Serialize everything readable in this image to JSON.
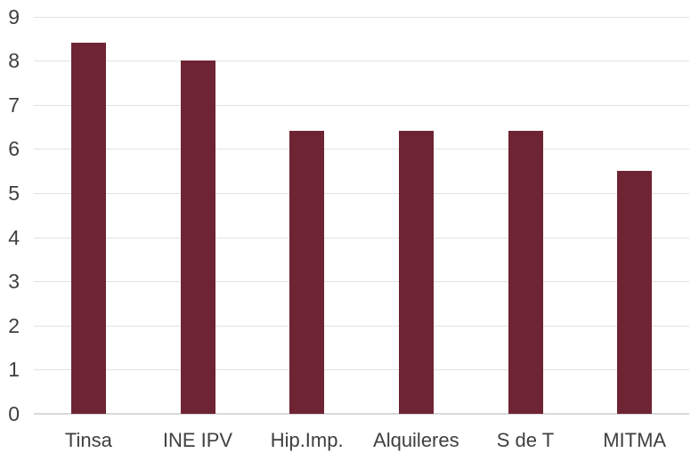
{
  "chart_data": {
    "type": "bar",
    "title": "",
    "xlabel": "",
    "ylabel": "",
    "categories": [
      "Tinsa",
      "INE IPV",
      "Hip.Imp.",
      "Alquileres",
      "S de T",
      "MITMA"
    ],
    "values": [
      8.4,
      8.0,
      6.4,
      6.4,
      6.4,
      5.5
    ],
    "ylim": [
      0,
      9
    ],
    "ytick_step": 1,
    "ytick_labels": [
      "0",
      "1",
      "2",
      "3",
      "4",
      "5",
      "6",
      "7",
      "8",
      "9"
    ],
    "grid": true,
    "legend": false,
    "colors": {
      "bar": "#6E2433",
      "gridline": "#E2E2E2",
      "axis_line": "#D9D9D9",
      "label_text": "#3F3F3F",
      "background": "#FFFFFF"
    }
  }
}
